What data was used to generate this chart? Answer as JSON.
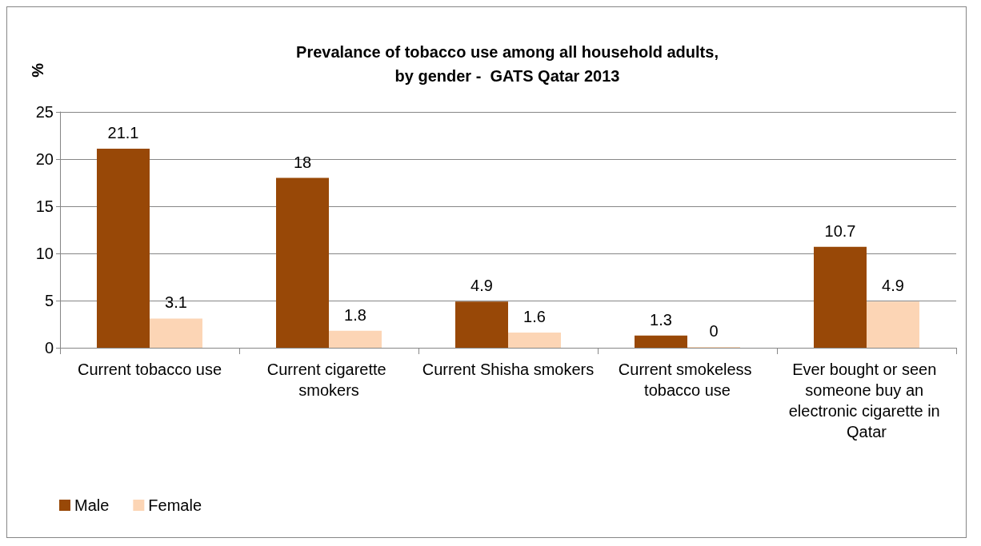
{
  "chart_data": {
    "type": "bar",
    "title": "Prevalance of tobacco use among all household adults,\nby gender -  GATS Qatar 2013",
    "ylabel": "%",
    "categories": [
      "Current tobacco use",
      "Current cigarette smokers",
      "Current Shisha smokers",
      "Current smokeless tobacco use",
      "Ever bought or seen someone buy an electronic cigarette in Qatar"
    ],
    "series": [
      {
        "name": "Male",
        "color": "#984807",
        "values": [
          21.1,
          18,
          4.9,
          1.3,
          10.7
        ]
      },
      {
        "name": "Female",
        "color": "#fcd5b5",
        "values": [
          3.1,
          1.8,
          1.6,
          0,
          4.9
        ]
      }
    ],
    "ylim": [
      0,
      25
    ],
    "yticks": [
      0,
      5,
      10,
      15,
      20,
      25
    ],
    "grid": "y",
    "legend": "bottom left",
    "data_labels": true
  }
}
